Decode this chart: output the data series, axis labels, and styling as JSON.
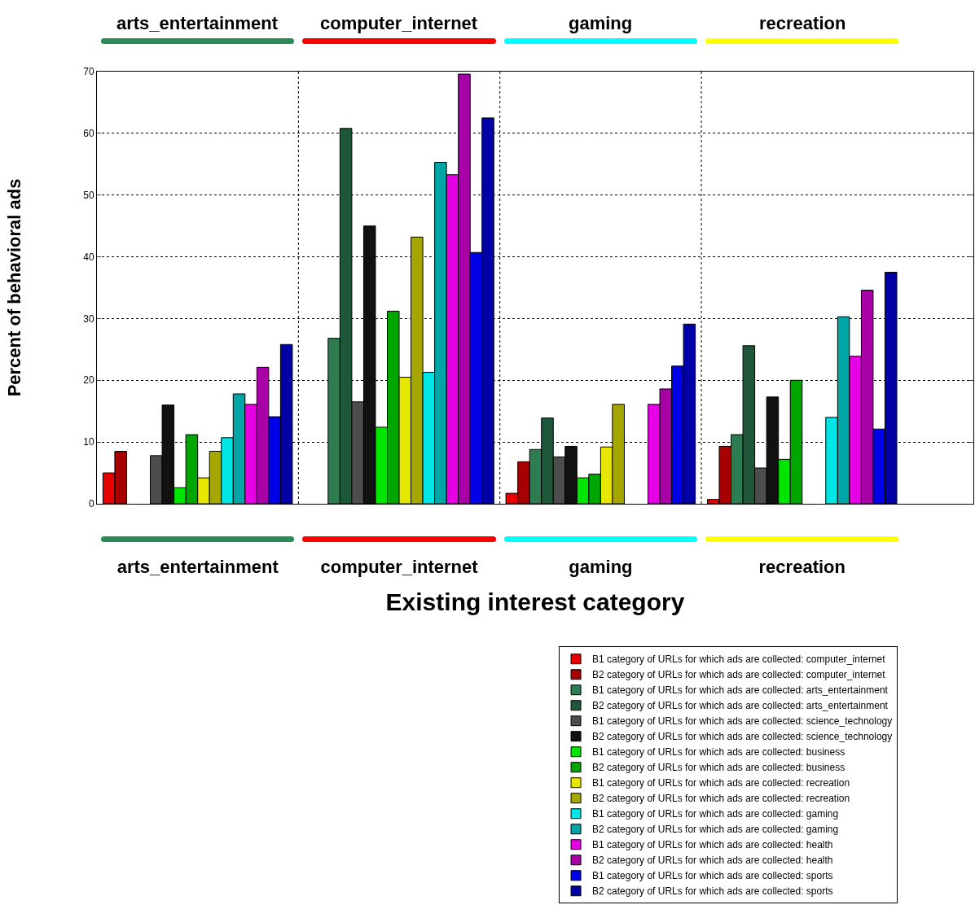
{
  "chart_data": {
    "type": "bar",
    "xlabel": "Existing interest category",
    "ylabel": "Percent of behavioral ads",
    "categories": [
      "arts_entertainment",
      "computer_internet",
      "gaming",
      "recreation"
    ],
    "ylim": [
      0,
      70
    ],
    "yticks": [
      0,
      10,
      20,
      30,
      40,
      50,
      60,
      70
    ],
    "grid": true,
    "legend": "bottom right",
    "series": [
      {
        "name": "B1 category of URLs for which ads are collected: computer_internet",
        "color": "#e60000",
        "values": [
          5.0,
          null,
          1.7,
          0.7
        ]
      },
      {
        "name": "B2 category of URLs for which ads are collected: computer_internet",
        "color": "#a60000",
        "values": [
          8.5,
          null,
          6.8,
          9.3
        ]
      },
      {
        "name": "B1 category of URLs for which ads are collected: arts_entertainment",
        "color": "#2e7d52",
        "values": [
          null,
          26.8,
          8.8,
          11.2
        ]
      },
      {
        "name": "B2 category of URLs for which ads are collected: arts_entertainment",
        "color": "#1f573a",
        "values": [
          null,
          60.8,
          13.9,
          25.6
        ]
      },
      {
        "name": "B1 category of URLs for which ads are collected: science_technology",
        "color": "#4d4d4d",
        "values": [
          7.8,
          16.5,
          7.6,
          5.8
        ]
      },
      {
        "name": "B2 category of URLs for which ads are collected: science_technology",
        "color": "#111111",
        "values": [
          16.0,
          45.0,
          9.3,
          17.3
        ]
      },
      {
        "name": "B1 category of URLs for which ads are collected: business",
        "color": "#00e600",
        "values": [
          2.6,
          12.4,
          4.2,
          7.2
        ]
      },
      {
        "name": "B2 category of URLs for which ads are collected: business",
        "color": "#00a600",
        "values": [
          11.2,
          31.2,
          4.8,
          20.0
        ]
      },
      {
        "name": "B1 category of URLs for which ads are collected: recreation",
        "color": "#e6e600",
        "values": [
          4.2,
          20.5,
          9.2,
          null
        ]
      },
      {
        "name": "B2 category of URLs for which ads are collected: recreation",
        "color": "#a6a600",
        "values": [
          8.5,
          43.2,
          16.1,
          null
        ]
      },
      {
        "name": "B1 category of URLs for which ads are collected: gaming",
        "color": "#00e6e6",
        "values": [
          10.7,
          21.3,
          null,
          14.0
        ]
      },
      {
        "name": "B2 category of URLs for which ads are collected: gaming",
        "color": "#00a6a6",
        "values": [
          17.8,
          55.3,
          null,
          30.3
        ]
      },
      {
        "name": "B1 category of URLs for which ads are collected: health",
        "color": "#e600e6",
        "values": [
          16.1,
          53.3,
          16.1,
          23.9
        ]
      },
      {
        "name": "B2 category of URLs for which ads are collected: health",
        "color": "#a600a6",
        "values": [
          22.1,
          69.6,
          18.6,
          34.6
        ]
      },
      {
        "name": "B1 category of URLs for which ads are collected: sports",
        "color": "#0000e6",
        "values": [
          14.1,
          40.7,
          22.3,
          12.1
        ]
      },
      {
        "name": "B2 category of URLs for which ads are collected: sports",
        "color": "#0000a6",
        "values": [
          25.8,
          62.5,
          29.1,
          37.5
        ]
      }
    ]
  }
}
